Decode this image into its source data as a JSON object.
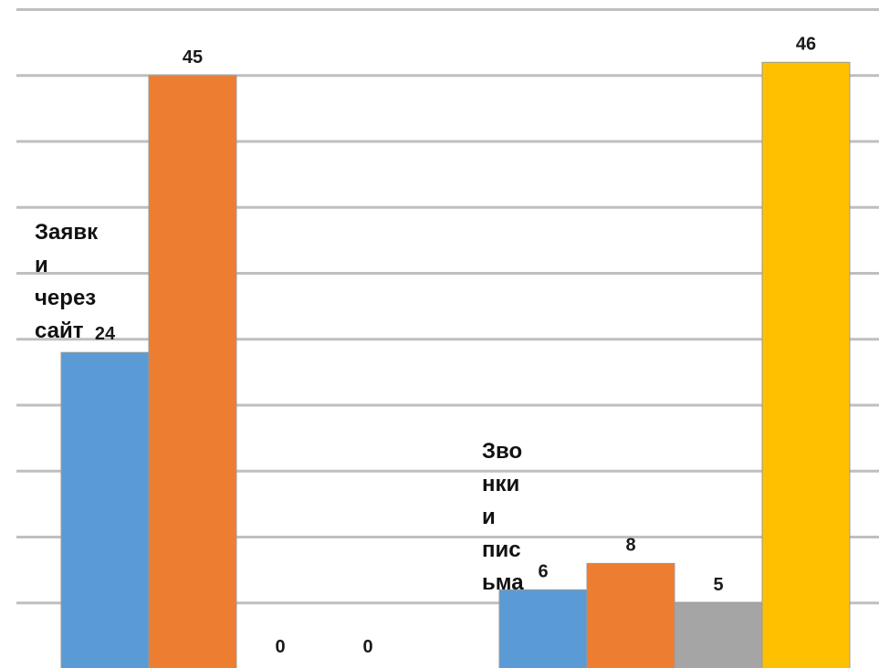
{
  "chart_data": {
    "type": "bar",
    "categories": [
      {
        "lines": [
          "Заявк",
          "и",
          "через",
          "сайт"
        ]
      },
      {
        "lines": [
          "Зво",
          "нки",
          "и",
          "пис",
          "ьма"
        ]
      }
    ],
    "series": [
      {
        "color": "#5b9bd5",
        "values": [
          24,
          6
        ]
      },
      {
        "color": "#ed7d31",
        "values": [
          45,
          8
        ]
      },
      {
        "color": "#a5a5a5",
        "values": [
          0,
          5
        ]
      },
      {
        "color": "#ffc000",
        "values": [
          0,
          46
        ]
      }
    ],
    "ylim": [
      0,
      50
    ],
    "grid": true,
    "legend": "none"
  }
}
